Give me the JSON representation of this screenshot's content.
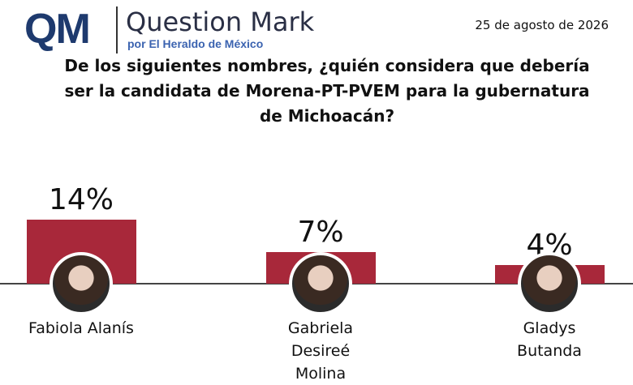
{
  "header": {
    "logo": "QM",
    "brand": "Question Mark",
    "byline": "por El Heraldo de México",
    "date": "25 de agosto de 2026"
  },
  "chart_data": {
    "type": "bar",
    "title": "De los siguientes nombres, ¿quién considera que debería ser la candidata de Morena-PT-PVEM para la gubernatura de Michoacán?",
    "categories": [
      "Fabiola Alanís",
      "Gabriela Desireé Molina",
      "Gladys Butanda"
    ],
    "values": [
      14,
      7,
      4
    ],
    "value_labels": [
      "14%",
      "7%",
      "4%"
    ],
    "color": "#a8283a"
  }
}
